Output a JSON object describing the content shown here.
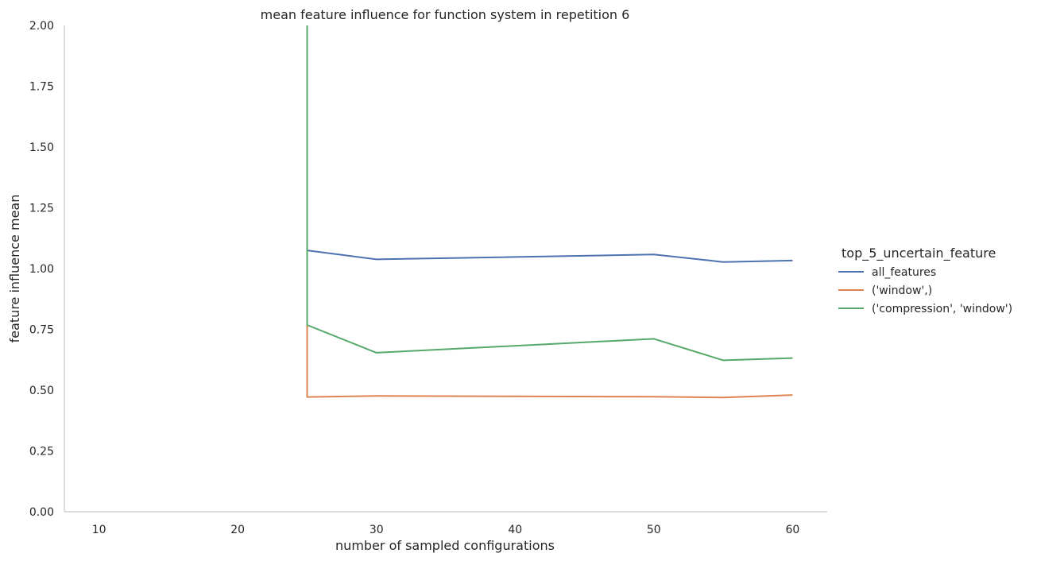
{
  "chart_data": {
    "type": "line",
    "title": "mean feature influence for function system in repetition 6",
    "xlabel": "number of sampled configurations",
    "ylabel": "feature influence mean",
    "xlim": [
      7.5,
      62.5
    ],
    "ylim": [
      0,
      2.0
    ],
    "xticks": [
      10,
      20,
      30,
      40,
      50,
      60
    ],
    "yticks": [
      0.0,
      0.25,
      0.5,
      0.75,
      1.0,
      1.25,
      1.5,
      1.75,
      2.0
    ],
    "ytick_labels": [
      "0.00",
      "0.25",
      "0.50",
      "0.75",
      "1.00",
      "1.25",
      "1.50",
      "1.75",
      "2.00"
    ],
    "grid": false,
    "legend": {
      "title": "top_5_uncertain_feature",
      "position": "right"
    },
    "series": [
      {
        "name": "all_features",
        "color": "#4c72b0",
        "points": [
          [
            25,
            1.075
          ],
          [
            30,
            1.038
          ],
          [
            50,
            1.058
          ],
          [
            55,
            1.027
          ],
          [
            60,
            1.033
          ]
        ]
      },
      {
        "name": "('window',)",
        "color": "#dd8452",
        "points": [
          [
            25,
            0.8
          ],
          [
            25,
            0.472
          ],
          [
            30,
            0.476
          ],
          [
            50,
            0.473
          ],
          [
            55,
            0.47
          ],
          [
            60,
            0.48
          ]
        ]
      },
      {
        "name": "('compression', 'window')",
        "color": "#55a868",
        "points": [
          [
            25,
            2.0
          ],
          [
            25,
            0.768
          ],
          [
            30,
            0.654
          ],
          [
            50,
            0.711
          ],
          [
            55,
            0.623
          ],
          [
            60,
            0.632
          ]
        ]
      }
    ]
  }
}
